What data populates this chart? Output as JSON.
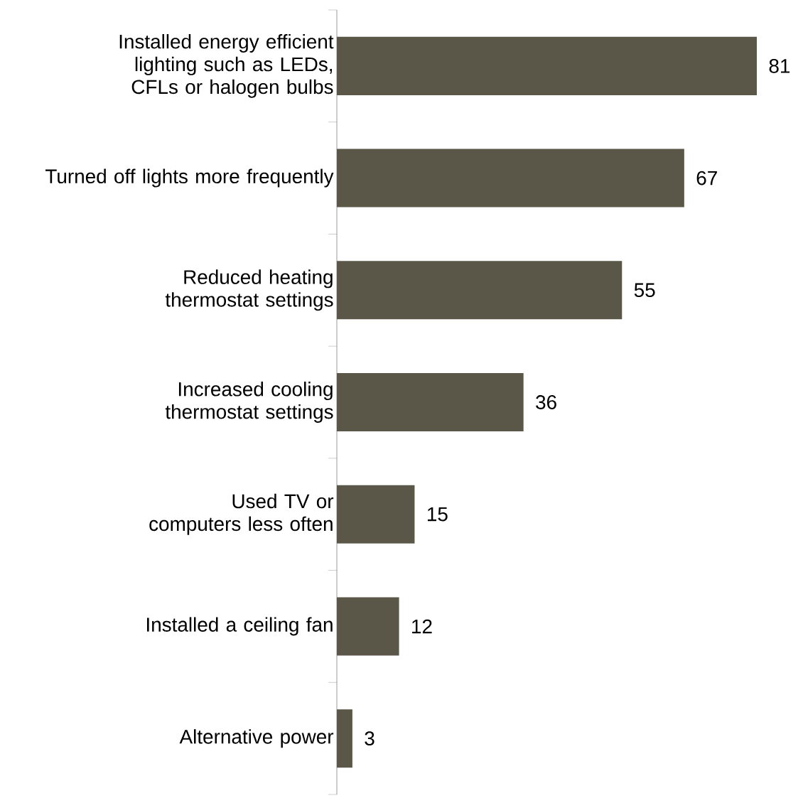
{
  "chart_data": {
    "type": "bar",
    "orientation": "horizontal",
    "categories": [
      "Installed energy efficient lighting such as LEDs, CFLs or halogen bulbs",
      "Turned off lights more frequently",
      "Reduced heating thermostat settings",
      "Increased cooling thermostat settings",
      "Used TV or computers less often",
      "Installed a ceiling fan",
      "Alternative power"
    ],
    "values": [
      81,
      67,
      55,
      36,
      15,
      12,
      3
    ],
    "color": "#5a5748",
    "data_labels": true
  }
}
